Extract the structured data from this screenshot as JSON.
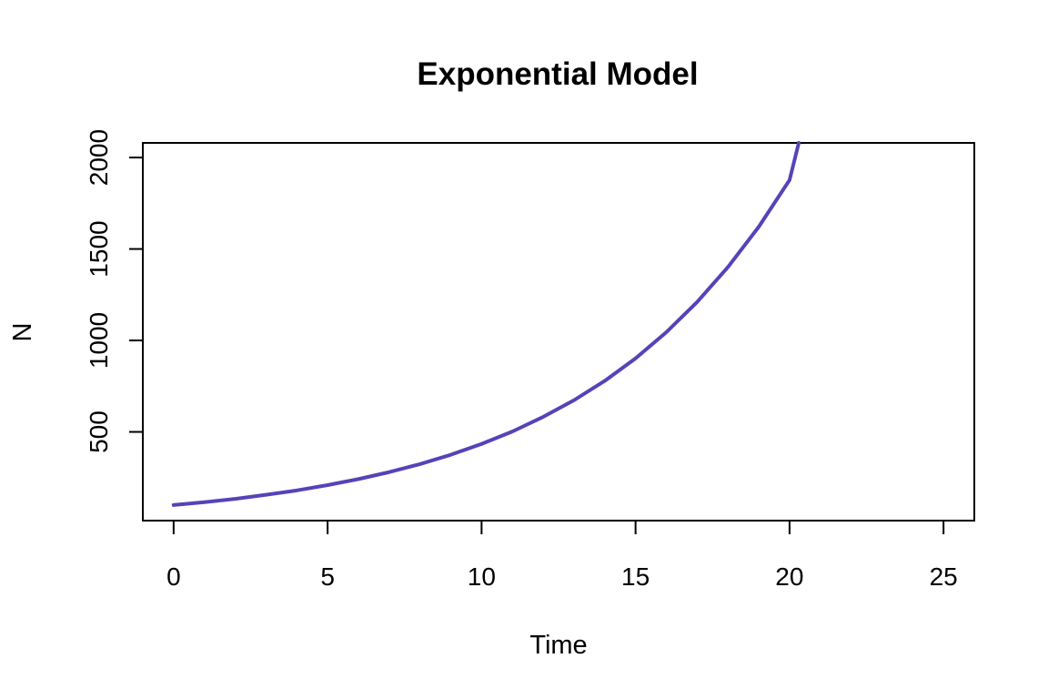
{
  "chart_data": {
    "type": "line",
    "title": "Exponential Model",
    "xlabel": "Time",
    "ylabel": "N",
    "xlim": [
      -1,
      26
    ],
    "ylim": [
      15,
      2080
    ],
    "xticks": [
      0,
      5,
      10,
      15,
      20,
      25
    ],
    "yticks": [
      500,
      1000,
      1500,
      2000
    ],
    "grid": false,
    "line_color": "#5444b8",
    "series": [
      {
        "x": [
          0,
          1,
          2,
          3,
          4,
          5,
          6,
          7,
          8,
          9,
          10,
          11,
          12,
          13,
          14,
          15,
          16,
          17,
          18,
          19,
          20,
          20.3
        ],
        "y": [
          100,
          116,
          134,
          156,
          180,
          209,
          242,
          280,
          324,
          375,
          434,
          502,
          582,
          673,
          779,
          902,
          1045,
          1210,
          1401,
          1621,
          1877,
          2080
        ]
      }
    ]
  }
}
